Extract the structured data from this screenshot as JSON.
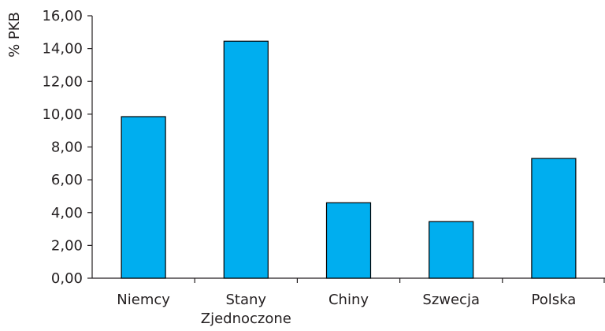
{
  "chart_data": {
    "type": "bar",
    "ylabel": "% PKB",
    "xlabel": "",
    "ylim": [
      0,
      16
    ],
    "y_ticks": [
      "0,00",
      "2,00",
      "4,00",
      "6,00",
      "8,00",
      "10,00",
      "12,00",
      "14,00",
      "16,00"
    ],
    "y_tick_values": [
      0,
      2,
      4,
      6,
      8,
      10,
      12,
      14,
      16
    ],
    "categories": [
      [
        "Niemcy"
      ],
      [
        "Stany",
        "Zjednoczone"
      ],
      [
        "Chiny"
      ],
      [
        "Szwecja"
      ],
      [
        "Polska"
      ]
    ],
    "values": [
      9.85,
      14.45,
      4.6,
      3.45,
      7.3
    ],
    "grid": false,
    "legend": "none",
    "bar_color": "#00aeef",
    "bar_stroke": "#000000",
    "axis_color": "#231f20"
  }
}
